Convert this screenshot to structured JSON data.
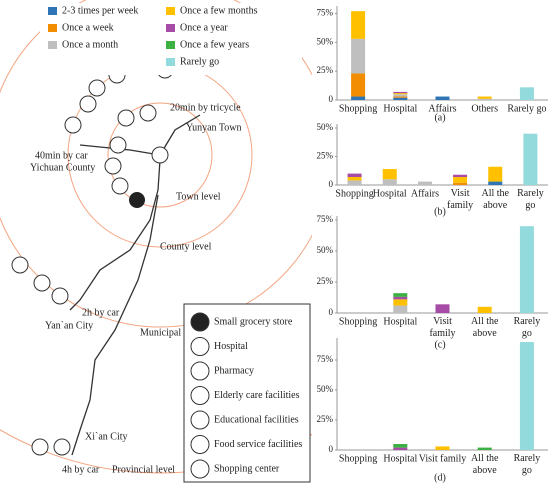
{
  "chart_data": [
    {
      "type": "bar",
      "stacked": true,
      "caption": "(a)",
      "categories": [
        "Shopping",
        "Hospital",
        "Affairs",
        "Others",
        "Rarely go"
      ],
      "ylim": [
        0,
        78
      ],
      "yticks": [
        {
          "value": 0,
          "label": "0"
        },
        {
          "value": 25,
          "label": "25%"
        },
        {
          "value": 50,
          "label": "50%"
        },
        {
          "value": 75,
          "label": "75%"
        }
      ],
      "series": [
        {
          "name": "2-3 times per week",
          "color": "#2e75b6",
          "values": [
            3,
            2,
            3,
            0,
            0
          ]
        },
        {
          "name": "Once a week",
          "color": "#f28c00",
          "values": [
            20,
            1,
            0,
            0,
            0
          ]
        },
        {
          "name": "Once a month",
          "color": "#bfbfbf",
          "values": [
            30,
            2,
            0,
            1,
            0
          ]
        },
        {
          "name": "Once a few months",
          "color": "#ffc000",
          "values": [
            24,
            1,
            0,
            2,
            0
          ]
        },
        {
          "name": "Once a year",
          "color": "#a64ca6",
          "values": [
            0,
            1,
            0,
            0,
            0
          ]
        },
        {
          "name": "Once a few years",
          "color": "#3cb043",
          "values": [
            0,
            0,
            0,
            0,
            0
          ]
        },
        {
          "name": "Rarely go",
          "color": "#93dadc",
          "values": [
            0,
            0,
            0,
            0,
            11
          ]
        }
      ]
    },
    {
      "type": "bar",
      "stacked": true,
      "caption": "(b)",
      "categories": [
        "Shopping",
        "Hospital",
        "Affairs",
        "Visit family",
        "All the above",
        "Rarely go"
      ],
      "ylim": [
        0,
        50
      ],
      "yticks": [
        {
          "value": 0,
          "label": "0"
        },
        {
          "value": 25,
          "label": "25%"
        },
        {
          "value": 50,
          "label": "50%"
        }
      ],
      "series": [
        {
          "name": "2-3 times per week",
          "color": "#2e75b6",
          "values": [
            0,
            0,
            0,
            0,
            3,
            0
          ]
        },
        {
          "name": "Once a week",
          "color": "#f28c00",
          "values": [
            0,
            0,
            0,
            2,
            0,
            0
          ]
        },
        {
          "name": "Once a month",
          "color": "#bfbfbf",
          "values": [
            4,
            5,
            3,
            0,
            0,
            0
          ]
        },
        {
          "name": "Once a few months",
          "color": "#ffc000",
          "values": [
            3,
            9,
            0,
            5,
            13,
            0
          ]
        },
        {
          "name": "Once a year",
          "color": "#a64ca6",
          "values": [
            3,
            0,
            0,
            2,
            0,
            0
          ]
        },
        {
          "name": "Once a few years",
          "color": "#3cb043",
          "values": [
            0,
            0,
            0,
            0,
            0,
            0
          ]
        },
        {
          "name": "Rarely go",
          "color": "#93dadc",
          "values": [
            0,
            0,
            0,
            0,
            0,
            45
          ]
        }
      ]
    },
    {
      "type": "bar",
      "stacked": true,
      "caption": "(c)",
      "categories": [
        "Shopping",
        "Hospital",
        "Visit family",
        "All the above",
        "Rarely go"
      ],
      "ylim": [
        0,
        75
      ],
      "yticks": [
        {
          "value": 0,
          "label": "0"
        },
        {
          "value": 25,
          "label": "25%"
        },
        {
          "value": 50,
          "label": "50%"
        },
        {
          "value": 75,
          "label": "75%"
        }
      ],
      "series": [
        {
          "name": "2-3 times per week",
          "color": "#2e75b6",
          "values": [
            0,
            0,
            0,
            0,
            0
          ]
        },
        {
          "name": "Once a week",
          "color": "#f28c00",
          "values": [
            0,
            0,
            0,
            0,
            0
          ]
        },
        {
          "name": "Once a month",
          "color": "#bfbfbf",
          "values": [
            0,
            6,
            0,
            0,
            0
          ]
        },
        {
          "name": "Once a few months",
          "color": "#ffc000",
          "values": [
            0,
            5,
            0,
            5,
            0
          ]
        },
        {
          "name": "Once a year",
          "color": "#a64ca6",
          "values": [
            0,
            2,
            7,
            0,
            0
          ]
        },
        {
          "name": "Once a few years",
          "color": "#3cb043",
          "values": [
            0,
            3,
            0,
            0,
            0
          ]
        },
        {
          "name": "Rarely go",
          "color": "#93dadc",
          "values": [
            0,
            0,
            0,
            0,
            70
          ]
        }
      ]
    },
    {
      "type": "bar",
      "stacked": true,
      "caption": "(d)",
      "categories": [
        "Shopping",
        "Hospital",
        "Visit family",
        "All the above",
        "Rarely go"
      ],
      "ylim": [
        0,
        90
      ],
      "yticks": [
        {
          "value": 0,
          "label": "0"
        },
        {
          "value": 25,
          "label": "25%"
        },
        {
          "value": 50,
          "label": "50%"
        },
        {
          "value": 75,
          "label": "75%"
        }
      ],
      "series": [
        {
          "name": "2-3 times per week",
          "color": "#2e75b6",
          "values": [
            0,
            0,
            0,
            0,
            0
          ]
        },
        {
          "name": "Once a week",
          "color": "#f28c00",
          "values": [
            0,
            0,
            0,
            0,
            0
          ]
        },
        {
          "name": "Once a month",
          "color": "#bfbfbf",
          "values": [
            0,
            0,
            0,
            0,
            0
          ]
        },
        {
          "name": "Once a few months",
          "color": "#ffc000",
          "values": [
            0,
            0,
            3,
            0,
            0
          ]
        },
        {
          "name": "Once a year",
          "color": "#a64ca6",
          "values": [
            0,
            2,
            0,
            0,
            0
          ]
        },
        {
          "name": "Once a few years",
          "color": "#3cb043",
          "values": [
            0,
            3,
            0,
            2,
            0
          ]
        },
        {
          "name": "Rarely go",
          "color": "#93dadc",
          "values": [
            0,
            0,
            0,
            0,
            90
          ]
        }
      ]
    }
  ],
  "diagram": {
    "places": [
      "20min by tricycle",
      "Yunyan Town",
      "40min by car",
      "Yichuan County",
      "Town level",
      "County level",
      "2h by car",
      "Yan`an City",
      "Municipal level",
      "Xi`an City",
      "4h by car",
      "Provincial level"
    ],
    "legend": [
      "Small grocery store",
      "Hospital",
      "Pharmacy",
      "Elderly care facilities",
      "Educational facilities",
      "Food service facilities",
      "Shopping center"
    ]
  }
}
